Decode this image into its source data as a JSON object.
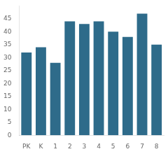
{
  "chart_data": {
    "type": "bar",
    "categories": [
      "PK",
      "K",
      "1",
      "2",
      "3",
      "4",
      "5",
      "6",
      "7",
      "8"
    ],
    "values": [
      32,
      34,
      28,
      44,
      43,
      44,
      40,
      38,
      47,
      35
    ],
    "color": "#2e6b8a",
    "ylim": [
      0,
      50
    ],
    "yticks": [
      0,
      5,
      10,
      15,
      20,
      25,
      30,
      35,
      40,
      45
    ],
    "grid": false
  }
}
